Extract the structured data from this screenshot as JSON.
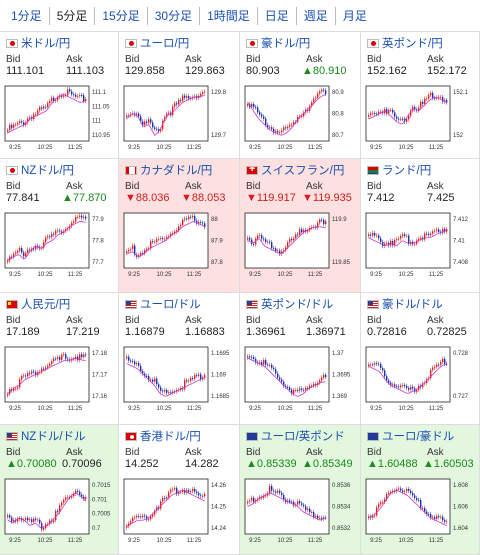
{
  "tabs": [
    "1分足",
    "5分足",
    "15分足",
    "30分足",
    "1時間足",
    "日足",
    "週足",
    "月足"
  ],
  "active_tab": 1,
  "quote_labels": {
    "bid": "Bid",
    "ask": "Ask"
  },
  "x_ticks": [
    "9:25",
    "10:25",
    "11:25"
  ],
  "colors": {
    "up": "#e0211b",
    "down": "#1a2fb0",
    "ma": "#cc33cc",
    "pink_bg": "#fde0e0",
    "green_bg": "#e2f7dd"
  },
  "cards": [
    {
      "title": "米ドル/円",
      "flag": "jp",
      "bg": "",
      "bid": "111.101",
      "ask": "111.103",
      "bid_dir": "",
      "ask_dir": "",
      "y_ticks": [
        "111.1",
        "111.05",
        "111",
        "110.95"
      ],
      "trend": [
        0.2,
        0.25,
        0.3,
        0.35,
        0.45,
        0.5,
        0.55,
        0.6,
        0.75,
        0.85,
        0.9,
        0.85,
        0.8,
        0.75,
        0.78
      ]
    },
    {
      "title": "ユーロ/円",
      "flag": "jp",
      "bg": "",
      "bid": "129.858",
      "ask": "129.863",
      "bid_dir": "",
      "ask_dir": "",
      "y_ticks": [
        "129.8",
        "129.7"
      ],
      "trend": [
        0.45,
        0.55,
        0.5,
        0.3,
        0.35,
        0.15,
        0.25,
        0.5,
        0.55,
        0.65,
        0.75,
        0.8,
        0.85,
        0.85,
        0.88
      ]
    },
    {
      "title": "豪ドル/円",
      "flag": "jp",
      "bg": "",
      "bid": "80.903",
      "ask": "80.910",
      "bid_dir": "",
      "ask_dir": "up",
      "ask_prefix": "▲",
      "y_ticks": [
        "80.9",
        "80.8",
        "80.7"
      ],
      "trend": [
        0.75,
        0.6,
        0.45,
        0.35,
        0.25,
        0.2,
        0.15,
        0.2,
        0.3,
        0.45,
        0.55,
        0.65,
        0.75,
        0.85,
        0.9
      ]
    },
    {
      "title": "英ポンド/円",
      "flag": "jp",
      "bg": "",
      "bid": "152.162",
      "ask": "152.172",
      "bid_dir": "",
      "ask_dir": "",
      "y_ticks": [
        "152.1",
        "152"
      ],
      "trend": [
        0.45,
        0.5,
        0.55,
        0.6,
        0.5,
        0.4,
        0.35,
        0.5,
        0.65,
        0.6,
        0.7,
        0.8,
        0.85,
        0.8,
        0.75
      ]
    },
    {
      "title": "NZドル/円",
      "flag": "jp",
      "bg": "",
      "bid": "77.841",
      "ask": "77.870",
      "bid_dir": "",
      "ask_dir": "up",
      "ask_prefix": "▲",
      "y_ticks": [
        "77.9",
        "77.8",
        "77.7"
      ],
      "trend": [
        0.2,
        0.25,
        0.3,
        0.2,
        0.35,
        0.45,
        0.4,
        0.5,
        0.55,
        0.65,
        0.7,
        0.8,
        0.85,
        0.9,
        0.88
      ]
    },
    {
      "title": "カナダドル/円",
      "flag": "ca",
      "bg": "pink",
      "bid": "88.036",
      "ask": "88.053",
      "bid_dir": "down",
      "ask_dir": "down",
      "bid_prefix": "▼",
      "ask_prefix": "▼",
      "y_ticks": [
        "88",
        "87.9",
        "87.8"
      ],
      "trend": [
        0.3,
        0.35,
        0.25,
        0.3,
        0.4,
        0.45,
        0.5,
        0.55,
        0.65,
        0.7,
        0.8,
        0.85,
        0.9,
        0.85,
        0.8
      ]
    },
    {
      "title": "スイスフラン/円",
      "flag": "ch",
      "bg": "pink",
      "bid": "119.917",
      "ask": "119.935",
      "bid_dir": "down",
      "ask_dir": "down",
      "bid_prefix": "▼",
      "ask_prefix": "▼",
      "y_ticks": [
        "119.9",
        "119.85"
      ],
      "trend": [
        0.55,
        0.5,
        0.6,
        0.45,
        0.4,
        0.35,
        0.3,
        0.4,
        0.5,
        0.6,
        0.7,
        0.75,
        0.8,
        0.8,
        0.78
      ]
    },
    {
      "title": "ランド/円",
      "flag": "za",
      "bg": "",
      "bid": "7.412",
      "ask": "7.425",
      "bid_dir": "",
      "ask_dir": "",
      "y_ticks": [
        "7.412",
        "7.41",
        "7.408"
      ],
      "trend": [
        0.6,
        0.55,
        0.5,
        0.45,
        0.5,
        0.45,
        0.55,
        0.5,
        0.5,
        0.55,
        0.6,
        0.6,
        0.65,
        0.7,
        0.75
      ]
    },
    {
      "title": "人民元/円",
      "flag": "cn",
      "bg": "",
      "bid": "17.189",
      "ask": "17.219",
      "bid_dir": "",
      "ask_dir": "",
      "y_ticks": [
        "17.18",
        "17.17",
        "17.16"
      ],
      "trend": [
        0.2,
        0.3,
        0.35,
        0.45,
        0.5,
        0.55,
        0.6,
        0.65,
        0.7,
        0.75,
        0.8,
        0.8,
        0.85,
        0.82,
        0.8
      ]
    },
    {
      "title": "ユーロ/ドル",
      "flag": "us",
      "bg": "",
      "bid": "1.16879",
      "ask": "1.16883",
      "bid_dir": "",
      "ask_dir": "",
      "y_ticks": [
        "1.1695",
        "1.169",
        "1.1685"
      ],
      "trend": [
        0.75,
        0.7,
        0.65,
        0.55,
        0.45,
        0.35,
        0.2,
        0.15,
        0.2,
        0.25,
        0.3,
        0.35,
        0.4,
        0.45,
        0.5
      ]
    },
    {
      "title": "英ポンド/ドル",
      "flag": "us",
      "bg": "",
      "bid": "1.36961",
      "ask": "1.36971",
      "bid_dir": "",
      "ask_dir": "",
      "y_ticks": [
        "1.37",
        "1.3695",
        "1.369"
      ],
      "trend": [
        0.85,
        0.8,
        0.75,
        0.7,
        0.6,
        0.5,
        0.4,
        0.3,
        0.2,
        0.15,
        0.2,
        0.3,
        0.35,
        0.4,
        0.42
      ]
    },
    {
      "title": "豪ドル/ドル",
      "flag": "us",
      "bg": "",
      "bid": "0.72816",
      "ask": "0.72825",
      "bid_dir": "",
      "ask_dir": "",
      "y_ticks": [
        "0.728",
        "0.727"
      ],
      "trend": [
        0.7,
        0.65,
        0.6,
        0.45,
        0.35,
        0.3,
        0.25,
        0.2,
        0.25,
        0.3,
        0.4,
        0.5,
        0.6,
        0.7,
        0.75
      ]
    },
    {
      "title": "NZドル/ドル",
      "flag": "us",
      "bg": "green",
      "bid": "0.70080",
      "ask": "0.70096",
      "bid_dir": "up",
      "ask_dir": "",
      "bid_prefix": "▲",
      "y_ticks": [
        "0.7015",
        "0.701",
        "0.7005",
        "0.7"
      ],
      "trend": [
        0.3,
        0.25,
        0.35,
        0.3,
        0.2,
        0.25,
        0.15,
        0.2,
        0.3,
        0.4,
        0.55,
        0.7,
        0.8,
        0.75,
        0.65
      ]
    },
    {
      "title": "香港ドル/円",
      "flag": "hk",
      "bg": "",
      "bid": "14.252",
      "ask": "14.282",
      "bid_dir": "",
      "ask_dir": "",
      "y_ticks": [
        "14.26",
        "14.25",
        "14.24"
      ],
      "trend": [
        0.2,
        0.25,
        0.3,
        0.3,
        0.35,
        0.45,
        0.55,
        0.65,
        0.75,
        0.8,
        0.85,
        0.8,
        0.75,
        0.7,
        0.65
      ]
    },
    {
      "title": "ユーロ/英ポンド",
      "flag": "eu",
      "bg": "green",
      "bid": "0.85339",
      "ask": "0.85349",
      "bid_dir": "up",
      "ask_dir": "up",
      "bid_prefix": "▲",
      "ask_prefix": "▲",
      "y_ticks": [
        "0.8536",
        "0.8534",
        "0.8532"
      ],
      "trend": [
        0.55,
        0.6,
        0.7,
        0.75,
        0.8,
        0.75,
        0.7,
        0.65,
        0.6,
        0.55,
        0.45,
        0.4,
        0.35,
        0.3,
        0.35
      ]
    },
    {
      "title": "ユーロ/豪ドル",
      "flag": "eu",
      "bg": "green",
      "bid": "1.60488",
      "ask": "1.60503",
      "bid_dir": "up",
      "ask_dir": "up",
      "bid_prefix": "▲",
      "ask_prefix": "▲",
      "y_ticks": [
        "1.608",
        "1.606",
        "1.604"
      ],
      "trend": [
        0.35,
        0.4,
        0.5,
        0.65,
        0.8,
        0.85,
        0.8,
        0.75,
        0.65,
        0.55,
        0.45,
        0.35,
        0.3,
        0.25,
        0.2
      ]
    }
  ]
}
